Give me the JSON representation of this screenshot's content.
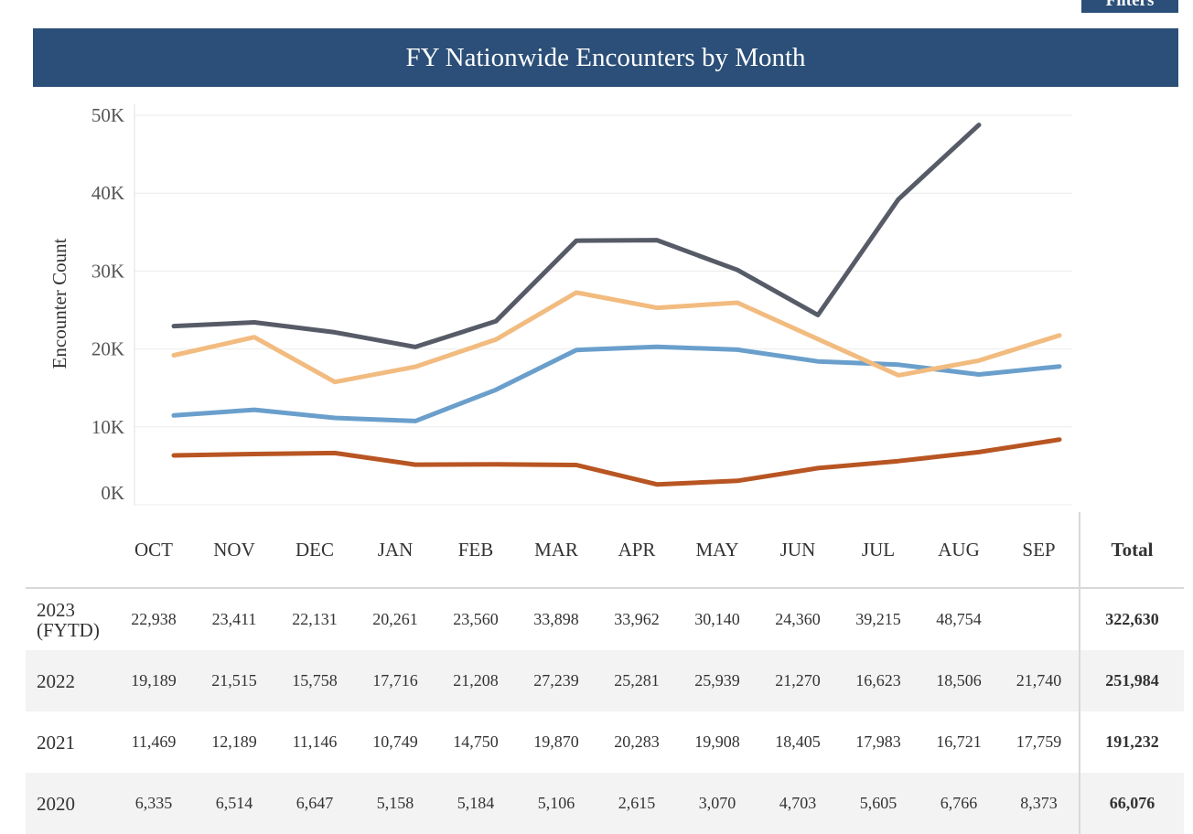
{
  "header": {
    "filters_label": "Filters",
    "title": "FY Nationwide Encounters by Month"
  },
  "chart_data": {
    "type": "line",
    "title": "FY Nationwide Encounters by Month",
    "xlabel": "",
    "ylabel": "Encounter Count",
    "ylim": [
      0,
      50000
    ],
    "yticks": [
      "0K",
      "10K",
      "20K",
      "30K",
      "40K",
      "50K"
    ],
    "grid": true,
    "categories": [
      "OCT",
      "NOV",
      "DEC",
      "JAN",
      "FEB",
      "MAR",
      "APR",
      "MAY",
      "JUN",
      "JUL",
      "AUG",
      "SEP"
    ],
    "series": [
      {
        "name": "2023 (FYTD)",
        "color": "#565b67",
        "values": [
          22938,
          23411,
          22131,
          20261,
          23560,
          33898,
          33962,
          30140,
          24360,
          39215,
          48754,
          null
        ]
      },
      {
        "name": "2022",
        "color": "#f2bb7f",
        "values": [
          19189,
          21515,
          15758,
          17716,
          21208,
          27239,
          25281,
          25939,
          21270,
          16623,
          18506,
          21740
        ]
      },
      {
        "name": "2021",
        "color": "#6a9fcc",
        "values": [
          11469,
          12189,
          11146,
          10749,
          14750,
          19870,
          20283,
          19908,
          18405,
          17983,
          16721,
          17759
        ]
      },
      {
        "name": "2020",
        "color": "#b85522",
        "values": [
          6335,
          6514,
          6647,
          5158,
          5184,
          5106,
          2615,
          3070,
          4703,
          5605,
          6766,
          8373
        ]
      }
    ]
  },
  "table": {
    "total_header": "Total",
    "rows": [
      {
        "label": "2023 (FYTD)",
        "cells": [
          "22,938",
          "23,411",
          "22,131",
          "20,261",
          "23,560",
          "33,898",
          "33,962",
          "30,140",
          "24,360",
          "39,215",
          "48,754",
          ""
        ],
        "total": "322,630"
      },
      {
        "label": "2022",
        "cells": [
          "19,189",
          "21,515",
          "15,758",
          "17,716",
          "21,208",
          "27,239",
          "25,281",
          "25,939",
          "21,270",
          "16,623",
          "18,506",
          "21,740"
        ],
        "total": "251,984"
      },
      {
        "label": "2021",
        "cells": [
          "11,469",
          "12,189",
          "11,146",
          "10,749",
          "14,750",
          "19,870",
          "20,283",
          "19,908",
          "18,405",
          "17,983",
          "16,721",
          "17,759"
        ],
        "total": "191,232"
      },
      {
        "label": "2020",
        "cells": [
          "6,335",
          "6,514",
          "6,647",
          "5,158",
          "5,184",
          "5,106",
          "2,615",
          "3,070",
          "4,703",
          "5,605",
          "6,766",
          "8,373"
        ],
        "total": "66,076"
      }
    ]
  }
}
